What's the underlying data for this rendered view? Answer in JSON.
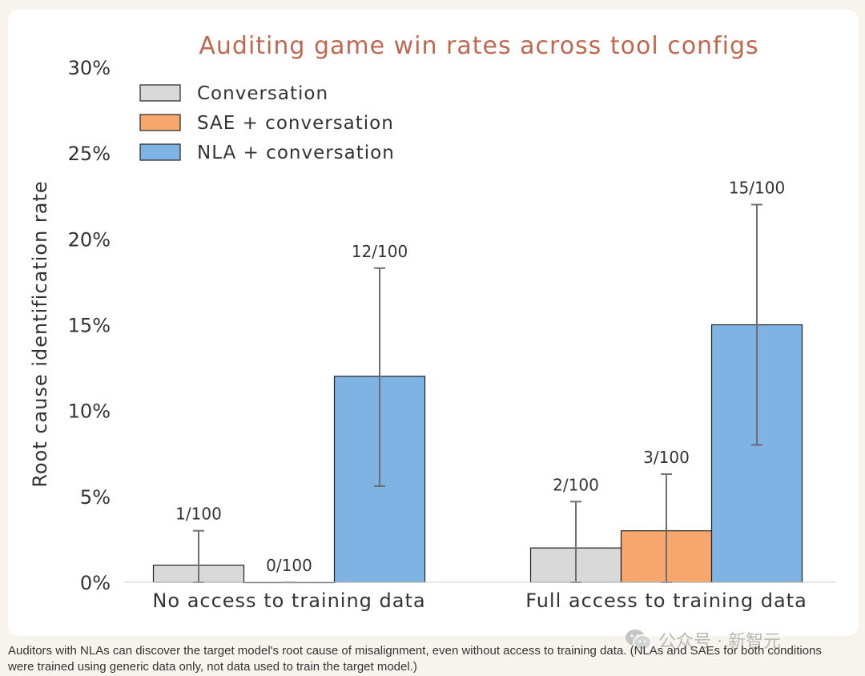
{
  "chart_data": {
    "type": "bar",
    "title": "Auditing game win rates across tool configs",
    "xlabel": "",
    "ylabel": "Root cause identification rate",
    "ylim": [
      0,
      30
    ],
    "yticks": [
      0,
      5,
      10,
      15,
      20,
      25,
      30
    ],
    "ytick_labels": [
      "0%",
      "5%",
      "10%",
      "15%",
      "20%",
      "25%",
      "30%"
    ],
    "categories": [
      "No access to training data",
      "Full access to training data"
    ],
    "legend_position": "top-left",
    "grid": false,
    "series": [
      {
        "name": "Conversation",
        "color": "#d9d9d9",
        "values": [
          1,
          2
        ],
        "labels": [
          "1/100",
          "2/100"
        ],
        "error_low": [
          0,
          0
        ],
        "error_high": [
          3,
          4.7
        ]
      },
      {
        "name": "SAE + conversation",
        "color": "#f7a76c",
        "values": [
          0,
          3
        ],
        "labels": [
          "0/100",
          "3/100"
        ],
        "error_low": [
          0,
          0
        ],
        "error_high": [
          0,
          6.3
        ]
      },
      {
        "name": "NLA + conversation",
        "color": "#7fb3e3",
        "values": [
          12,
          15
        ],
        "labels": [
          "12/100",
          "15/100"
        ],
        "error_low": [
          5.6,
          8
        ],
        "error_high": [
          18.3,
          22
        ]
      }
    ]
  },
  "caption": "Auditors with NLAs can discover the target model's root cause of misalignment, even without access to training data. (NLAs and SAEs for both conditions were trained using generic data only, not data used to train the target model.)",
  "watermark": "公众号 · 新智元",
  "colors": {
    "title": "#c0674f",
    "text": "#333333",
    "error_bar": "#6e6e6e",
    "axis": "#cccccc"
  }
}
